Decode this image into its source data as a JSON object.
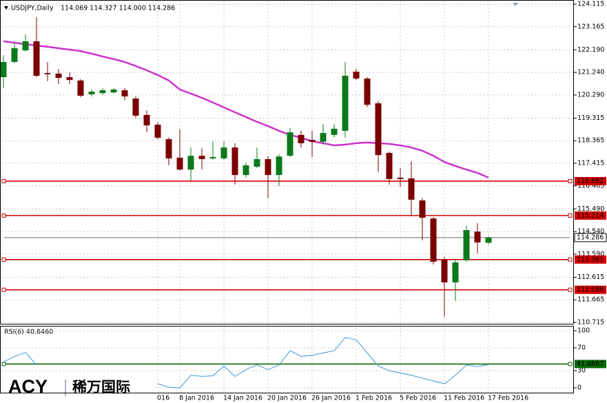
{
  "chart_data": [
    {
      "type": "candlestick",
      "title": "USDJPY,Daily",
      "quote": "114.069 114.327 114.000 114.286",
      "categories": [
        null,
        null,
        null,
        null,
        null,
        null,
        null,
        null,
        null,
        null,
        null,
        null,
        null,
        null,
        "016",
        null,
        "8 Jan 2016",
        null,
        null,
        null,
        "14 Jan 2016",
        null,
        null,
        null,
        "20 Jan 2016",
        null,
        null,
        null,
        "26 Jan 2016",
        null,
        null,
        null,
        "1 Feb 2016",
        null,
        null,
        null,
        "5 Feb 2016",
        null,
        null,
        null,
        "11 Feb 2016",
        null,
        null,
        null,
        "17 Feb 2016"
      ],
      "open": [
        121.04,
        121.68,
        122.17,
        122.55,
        121.21,
        121.19,
        121.04,
        120.9,
        120.32,
        120.37,
        120.4,
        120.49,
        120.14,
        119.45,
        119.04,
        118.43,
        117.65,
        117.15,
        117.73,
        117.62,
        117.62,
        118.08,
        116.92,
        117.27,
        117.59,
        116.92,
        117.73,
        118.61,
        118.4,
        118.32,
        118.61,
        118.78,
        121.27,
        120.98,
        119.94,
        117.85,
        116.81,
        116.78,
        115.85,
        115.09,
        113.35,
        112.4,
        113.33,
        114.54,
        114.069
      ],
      "high": [
        121.97,
        122.49,
        122.84,
        123.56,
        121.68,
        121.39,
        121.24,
        120.95,
        120.52,
        120.58,
        120.58,
        120.58,
        120.23,
        119.65,
        119.13,
        118.49,
        118.84,
        118.08,
        118.05,
        118.34,
        118.34,
        118.26,
        117.44,
        118.08,
        117.73,
        117.79,
        118.9,
        118.78,
        118.78,
        119.07,
        119.07,
        121.68,
        121.39,
        121.04,
        120.03,
        117.91,
        117.21,
        117.5,
        115.94,
        115.15,
        113.47,
        113.38,
        114.78,
        114.89,
        114.327
      ],
      "low": [
        120.58,
        121.62,
        122.11,
        121.04,
        120.87,
        120.75,
        120.75,
        120.2,
        120.23,
        120.29,
        120.35,
        120.06,
        119.33,
        118.72,
        118.43,
        117.33,
        117.1,
        116.69,
        117.15,
        117.56,
        117.56,
        116.52,
        116.81,
        117.21,
        115.94,
        116.46,
        117.68,
        118.08,
        117.68,
        118.2,
        118.49,
        118.49,
        120.92,
        119.79,
        117.04,
        116.52,
        116.43,
        115.18,
        114.17,
        113.15,
        110.95,
        111.62,
        113.27,
        113.61,
        114.0
      ],
      "close": [
        121.68,
        122.26,
        122.55,
        121.1,
        121.16,
        121.01,
        120.92,
        120.26,
        120.43,
        120.49,
        120.52,
        120.23,
        119.42,
        119.01,
        118.49,
        117.62,
        117.15,
        117.73,
        117.59,
        117.68,
        118.08,
        116.92,
        117.33,
        117.59,
        116.92,
        117.7,
        118.72,
        118.26,
        118.32,
        118.69,
        118.87,
        121.1,
        120.98,
        119.88,
        117.76,
        116.75,
        116.75,
        115.88,
        115.12,
        113.27,
        112.4,
        113.24,
        114.6,
        114.08,
        114.286
      ],
      "up_color": "#0b7a1a",
      "down_color": "#7a0000",
      "ma": {
        "color": "#cc33cc",
        "values": [
          122.55,
          122.49,
          122.43,
          122.37,
          122.32,
          122.26,
          122.2,
          122.14,
          122.03,
          121.91,
          121.8,
          121.68,
          121.51,
          121.33,
          121.13,
          120.9,
          120.52,
          120.35,
          120.17,
          119.97,
          119.77,
          119.56,
          119.36,
          119.16,
          118.98,
          118.78,
          118.61,
          118.49,
          118.34,
          118.26,
          118.17,
          118.2,
          118.26,
          118.29,
          118.26,
          118.23,
          118.17,
          118.08,
          117.94,
          117.73,
          117.47,
          117.3,
          117.15,
          117.01,
          116.81
        ]
      },
      "levels": [
        {
          "value": 116.662,
          "color": "#d00000"
        },
        {
          "value": 115.214,
          "color": "#d00000"
        },
        {
          "value": 113.361,
          "color": "#d00000"
        },
        {
          "value": 112.088,
          "color": "#d00000"
        }
      ],
      "last_price": 114.286,
      "ylim": [
        110.657,
        124.289
      ],
      "yticks": [
        124.115,
        123.165,
        {
          "value": 122.19,
          "label": "122.190"
        },
        {
          "value": 121.24,
          "label": "121.240"
        },
        {
          "value": 120.29,
          "label": "120.290"
        },
        119.315,
        118.365,
        117.415,
        116.465,
        {
          "value": 115.49,
          "label": "115.490"
        },
        {
          "value": 114.54,
          "label": "114.540"
        },
        {
          "value": 113.59,
          "label": "113.590"
        },
        112.615,
        111.665,
        110.715
      ],
      "grid": true
    },
    {
      "type": "line",
      "title": "RSI(6) 40.8460",
      "series": [
        {
          "color": "#3a9ad9",
          "values": [
            45,
            55,
            62,
            40,
            null,
            null,
            null,
            null,
            null,
            null,
            null,
            null,
            null,
            null,
            7,
            1,
            0,
            22,
            20,
            21,
            38,
            20,
            32,
            40,
            32,
            40,
            65,
            55,
            57,
            61,
            65,
            88,
            84,
            61,
            38,
            30,
            26,
            22,
            17,
            12,
            7,
            22,
            40,
            37,
            40.846
          ]
        }
      ],
      "level": {
        "value": 41.6667,
        "color": "#0a6a0a"
      },
      "ylim": [
        -8.5,
        107.3
      ],
      "yticks": [
        100,
        70,
        30,
        0
      ],
      "grid": true
    }
  ],
  "watermark": {
    "brand": "ACY",
    "name": "稀万国际"
  }
}
